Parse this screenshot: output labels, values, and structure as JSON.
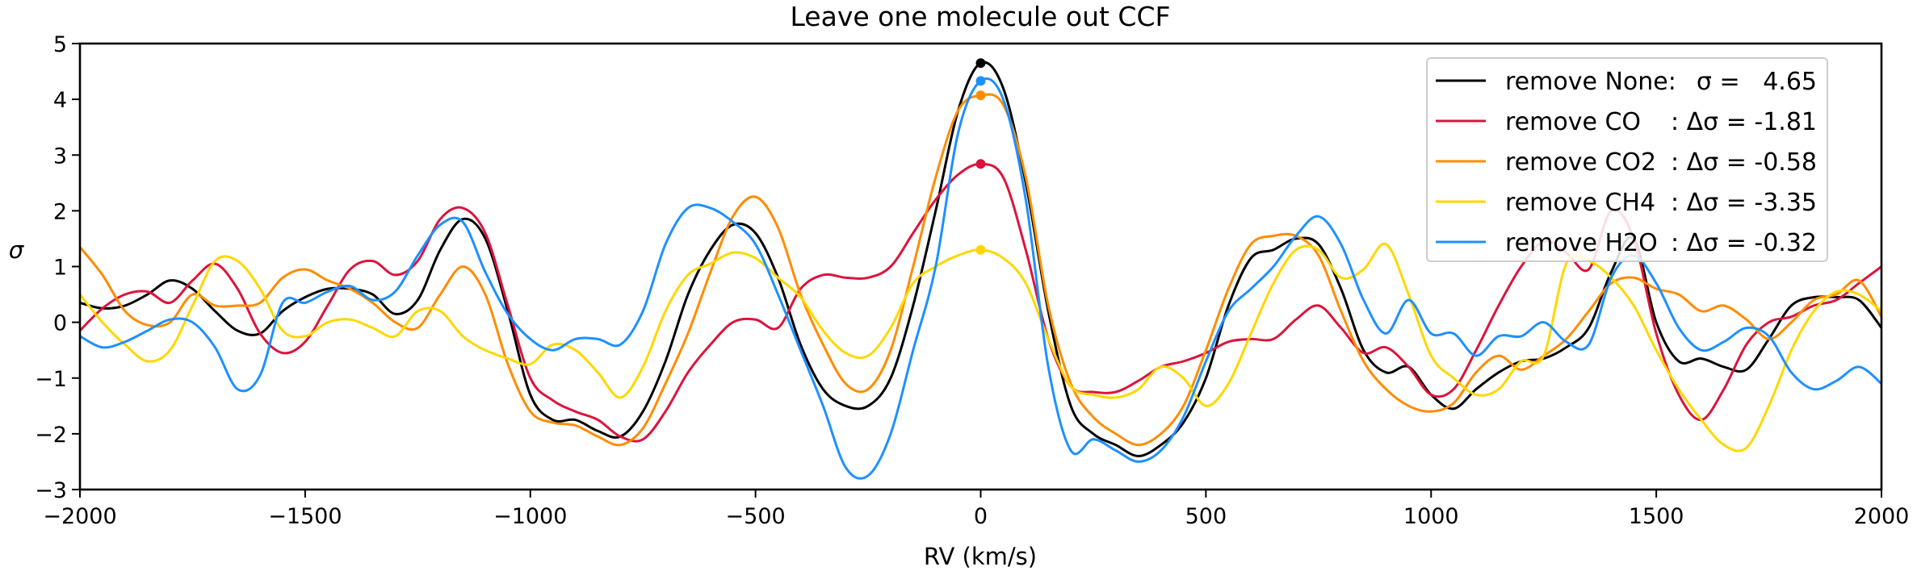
{
  "chart_data": {
    "type": "line",
    "title": "Leave one molecule out CCF",
    "xlabel": "RV (km/s)",
    "ylabel": "σ",
    "xlim": [
      -2000,
      2000
    ],
    "ylim": [
      -3,
      5
    ],
    "xticks": [
      -2000,
      -1500,
      -1000,
      -500,
      0,
      500,
      1000,
      1500,
      2000
    ],
    "xtick_labels": [
      "−2000",
      "−1500",
      "−1000",
      "−500",
      "0",
      "500",
      "1000",
      "1500",
      "2000"
    ],
    "yticks": [
      -3,
      -2,
      -1,
      0,
      1,
      2,
      3,
      4,
      5
    ],
    "ytick_labels": [
      "−3",
      "−2",
      "−1",
      "0",
      "1",
      "2",
      "3",
      "4",
      "5"
    ],
    "grid": false,
    "legend_position": "top-right",
    "x": [
      -2000,
      -1950,
      -1900,
      -1850,
      -1800,
      -1750,
      -1700,
      -1650,
      -1600,
      -1550,
      -1500,
      -1450,
      -1400,
      -1350,
      -1300,
      -1250,
      -1200,
      -1150,
      -1100,
      -1050,
      -1000,
      -950,
      -900,
      -850,
      -800,
      -750,
      -700,
      -650,
      -600,
      -550,
      -500,
      -450,
      -400,
      -350,
      -300,
      -250,
      -200,
      -150,
      -100,
      -50,
      0,
      50,
      100,
      150,
      200,
      250,
      300,
      350,
      400,
      450,
      500,
      550,
      600,
      650,
      700,
      750,
      800,
      850,
      900,
      950,
      1000,
      1050,
      1100,
      1150,
      1200,
      1250,
      1300,
      1350,
      1400,
      1450,
      1500,
      1550,
      1600,
      1650,
      1700,
      1750,
      1800,
      1850,
      1900,
      1950,
      2000
    ],
    "series": [
      {
        "name": "remove None",
        "legend_name": "remove None:",
        "legend_stat": "σ =   4.65",
        "color": "#000000",
        "peak": 4.65,
        "values": [
          0.35,
          0.25,
          0.3,
          0.5,
          0.75,
          0.6,
          0.2,
          -0.15,
          -0.2,
          0.2,
          0.45,
          0.6,
          0.6,
          0.5,
          0.15,
          0.4,
          1.3,
          1.85,
          1.5,
          0.2,
          -1.3,
          -1.75,
          -1.75,
          -1.95,
          -2.05,
          -1.6,
          -0.7,
          0.5,
          1.3,
          1.75,
          1.6,
          0.8,
          -0.4,
          -1.2,
          -1.5,
          -1.5,
          -1.0,
          0.3,
          2.0,
          3.8,
          4.65,
          4.2,
          2.5,
          0.2,
          -1.5,
          -2.0,
          -2.2,
          -2.4,
          -2.2,
          -1.8,
          -1.0,
          0.3,
          1.15,
          1.3,
          1.5,
          1.4,
          0.6,
          -0.5,
          -0.9,
          -0.8,
          -1.3,
          -1.55,
          -1.2,
          -0.9,
          -0.7,
          -0.65,
          -0.45,
          -0.1,
          0.9,
          1.5,
          0.0,
          -0.7,
          -0.65,
          -0.8,
          -0.85,
          -0.3,
          0.3,
          0.45,
          0.45,
          0.4,
          -0.1
        ]
      },
      {
        "name": "remove CO",
        "legend_name": "remove CO",
        "legend_stat": ": Δσ = -1.81",
        "color": "#dc143c",
        "peak": 2.84,
        "values": [
          -0.15,
          0.25,
          0.5,
          0.55,
          0.35,
          0.75,
          1.05,
          0.6,
          -0.2,
          -0.55,
          -0.35,
          0.3,
          0.95,
          1.1,
          0.85,
          1.1,
          1.85,
          2.05,
          1.6,
          0.3,
          -1.0,
          -1.4,
          -1.6,
          -1.75,
          -2.05,
          -2.1,
          -1.6,
          -0.9,
          -0.4,
          0.0,
          0.05,
          -0.1,
          0.6,
          0.85,
          0.8,
          0.8,
          1.0,
          1.6,
          2.2,
          2.65,
          2.84,
          2.6,
          1.3,
          -0.3,
          -1.15,
          -1.25,
          -1.25,
          -1.05,
          -0.8,
          -0.7,
          -0.55,
          -0.35,
          -0.3,
          -0.3,
          0.05,
          0.3,
          -0.1,
          -0.55,
          -0.45,
          -0.8,
          -1.3,
          -1.2,
          -0.5,
          0.3,
          1.0,
          1.45,
          1.25,
          0.95,
          2.0,
          1.5,
          -0.2,
          -1.3,
          -1.75,
          -1.2,
          -0.4,
          0.0,
          0.1,
          0.3,
          0.4,
          0.7,
          1.0
        ]
      },
      {
        "name": "remove CO2",
        "legend_name": "remove CO2",
        "legend_stat": ": Δσ = -0.58",
        "color": "#ff8c00",
        "peak": 4.07,
        "values": [
          1.35,
          0.85,
          0.2,
          -0.05,
          0.0,
          0.5,
          0.3,
          0.3,
          0.35,
          0.8,
          0.95,
          0.75,
          0.6,
          0.35,
          0.0,
          -0.1,
          0.5,
          1.0,
          0.5,
          -0.75,
          -1.6,
          -1.8,
          -1.85,
          -2.05,
          -2.2,
          -1.9,
          -1.1,
          -0.2,
          0.9,
          1.9,
          2.25,
          1.7,
          0.5,
          -0.4,
          -1.1,
          -1.2,
          -0.5,
          1.0,
          2.6,
          3.8,
          4.07,
          3.9,
          2.6,
          0.3,
          -1.1,
          -1.7,
          -2.0,
          -2.2,
          -2.0,
          -1.5,
          -0.5,
          0.6,
          1.4,
          1.55,
          1.55,
          1.2,
          0.2,
          -0.7,
          -1.2,
          -1.5,
          -1.6,
          -1.45,
          -0.9,
          -0.6,
          -0.85,
          -0.6,
          -0.3,
          0.2,
          0.7,
          0.8,
          0.6,
          0.5,
          0.2,
          0.3,
          0.05,
          -0.3,
          0.0,
          0.4,
          0.5,
          0.75,
          0.1
        ]
      },
      {
        "name": "remove CH4",
        "legend_name": "remove CH4",
        "legend_stat": ": Δσ = -3.35",
        "color": "#ffd700",
        "peak": 1.3,
        "values": [
          0.5,
          0.0,
          -0.4,
          -0.7,
          -0.5,
          0.3,
          1.1,
          1.1,
          0.6,
          -0.15,
          -0.25,
          0.0,
          0.05,
          -0.1,
          -0.25,
          0.2,
          0.2,
          -0.25,
          -0.5,
          -0.65,
          -0.75,
          -0.4,
          -0.5,
          -0.9,
          -1.35,
          -0.8,
          0.2,
          0.85,
          1.05,
          1.25,
          1.15,
          0.8,
          0.45,
          -0.15,
          -0.55,
          -0.6,
          -0.1,
          0.7,
          1.0,
          1.2,
          1.3,
          1.15,
          0.7,
          -0.3,
          -1.15,
          -1.3,
          -1.35,
          -1.2,
          -0.8,
          -1.0,
          -1.5,
          -1.1,
          -0.2,
          0.7,
          1.3,
          1.3,
          0.8,
          0.95,
          1.4,
          0.5,
          -0.6,
          -1.0,
          -1.3,
          -1.2,
          -0.7,
          -0.6,
          1.05,
          1.1,
          0.8,
          0.3,
          -0.5,
          -1.2,
          -1.75,
          -2.2,
          -2.25,
          -1.5,
          -0.5,
          0.2,
          0.55,
          0.5,
          0.2
        ]
      },
      {
        "name": "remove H2O",
        "legend_name": "remove H2O",
        "legend_stat": ": Δσ = -0.32",
        "color": "#1e90ff",
        "peak": 4.33,
        "values": [
          -0.25,
          -0.45,
          -0.35,
          -0.15,
          0.05,
          0.0,
          -0.45,
          -1.2,
          -0.95,
          0.35,
          0.35,
          0.55,
          0.65,
          0.4,
          0.55,
          1.2,
          1.75,
          1.8,
          0.9,
          0.15,
          -0.3,
          -0.5,
          -0.3,
          -0.3,
          -0.4,
          0.2,
          1.4,
          2.05,
          2.05,
          1.8,
          1.4,
          0.5,
          -0.5,
          -1.5,
          -2.6,
          -2.75,
          -2.0,
          -0.5,
          1.0,
          3.4,
          4.33,
          4.0,
          2.2,
          -0.8,
          -2.3,
          -2.1,
          -2.3,
          -2.5,
          -2.3,
          -1.7,
          -0.7,
          0.2,
          0.6,
          1.0,
          1.55,
          1.9,
          1.4,
          0.4,
          -0.2,
          0.4,
          -0.2,
          -0.2,
          -0.6,
          -0.25,
          -0.25,
          0.0,
          -0.35,
          -0.4,
          0.8,
          1.2,
          0.7,
          -0.1,
          -0.5,
          -0.35,
          -0.1,
          -0.25,
          -0.9,
          -1.2,
          -1.05,
          -0.8,
          -1.1
        ]
      }
    ]
  }
}
